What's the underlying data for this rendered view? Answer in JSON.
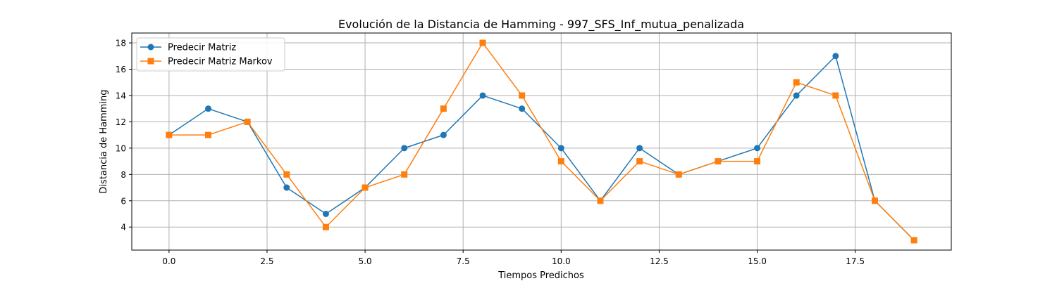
{
  "chart_data": {
    "type": "line",
    "title": "Evolución de la Distancia de Hamming - 997_SFS_Inf_mutua_penalizada",
    "xlabel": "Tiempos Predichos",
    "ylabel": "Distancia de Hamming",
    "xlim": [
      -0.95,
      19.95
    ],
    "ylim": [
      2.25,
      18.75
    ],
    "xticks": [
      0.0,
      2.5,
      5.0,
      7.5,
      10.0,
      12.5,
      15.0,
      17.5
    ],
    "xtick_labels": [
      "0.0",
      "2.5",
      "5.0",
      "7.5",
      "10.0",
      "12.5",
      "15.0",
      "17.5"
    ],
    "yticks": [
      4,
      6,
      8,
      10,
      12,
      14,
      16,
      18
    ],
    "ytick_labels": [
      "4",
      "6",
      "8",
      "10",
      "12",
      "14",
      "16",
      "18"
    ],
    "grid": true,
    "legend_position": "top-left",
    "x": [
      0,
      1,
      2,
      3,
      4,
      5,
      6,
      7,
      8,
      9,
      10,
      11,
      12,
      13,
      14,
      15,
      16,
      17,
      18,
      19
    ],
    "series": [
      {
        "name": "Predecir Matriz",
        "color": "#1f77b4",
        "marker": "circle",
        "values": [
          11,
          13,
          12,
          7,
          5,
          7,
          10,
          11,
          14,
          13,
          10,
          6,
          10,
          8,
          9,
          10,
          14,
          17,
          6,
          3
        ]
      },
      {
        "name": "Predecir Matriz Markov",
        "color": "#ff7f0e",
        "marker": "square",
        "values": [
          11,
          11,
          12,
          8,
          4,
          7,
          8,
          13,
          18,
          14,
          9,
          6,
          9,
          8,
          9,
          9,
          15,
          14,
          6,
          3
        ]
      }
    ]
  }
}
